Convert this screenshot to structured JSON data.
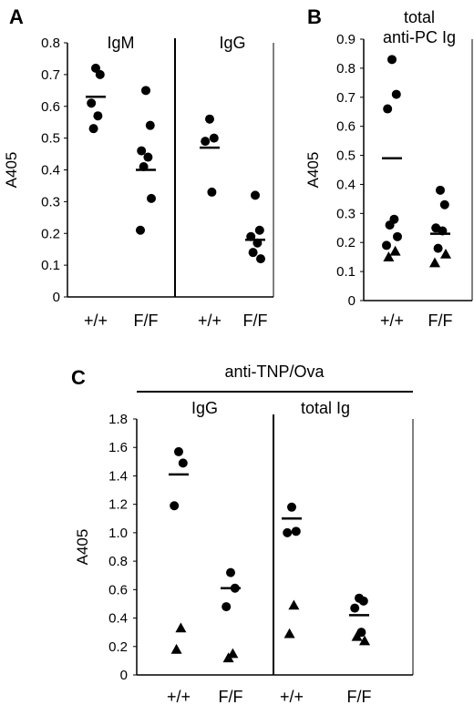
{
  "chart_data": [
    {
      "panel": "A",
      "type": "scatter",
      "ylabel": "A405",
      "ylim": [
        0,
        0.8
      ],
      "yticks": [
        "0",
        "0.1",
        "0.2",
        "0.3",
        "0.4",
        "0.5",
        "0.6",
        "0.7",
        "0.8"
      ],
      "grid": false,
      "groups": [
        {
          "label": "IgM",
          "categories": [
            {
              "label": "+/+",
              "points": [
                {
                  "y": 0.72,
                  "marker": "circle"
                },
                {
                  "y": 0.7,
                  "marker": "circle"
                },
                {
                  "y": 0.61,
                  "marker": "circle"
                },
                {
                  "y": 0.57,
                  "marker": "circle"
                },
                {
                  "y": 0.53,
                  "marker": "circle"
                }
              ],
              "mean": 0.63
            },
            {
              "label": "F/F",
              "points": [
                {
                  "y": 0.65,
                  "marker": "circle"
                },
                {
                  "y": 0.54,
                  "marker": "circle"
                },
                {
                  "y": 0.46,
                  "marker": "circle"
                },
                {
                  "y": 0.44,
                  "marker": "circle"
                },
                {
                  "y": 0.41,
                  "marker": "circle"
                },
                {
                  "y": 0.31,
                  "marker": "circle"
                },
                {
                  "y": 0.21,
                  "marker": "circle"
                }
              ],
              "mean": 0.4
            }
          ]
        },
        {
          "label": "IgG",
          "categories": [
            {
              "label": "+/+",
              "points": [
                {
                  "y": 0.56,
                  "marker": "circle"
                },
                {
                  "y": 0.5,
                  "marker": "circle"
                },
                {
                  "y": 0.49,
                  "marker": "circle"
                },
                {
                  "y": 0.33,
                  "marker": "circle"
                }
              ],
              "mean": 0.47
            },
            {
              "label": "F/F",
              "points": [
                {
                  "y": 0.32,
                  "marker": "circle"
                },
                {
                  "y": 0.21,
                  "marker": "circle"
                },
                {
                  "y": 0.19,
                  "marker": "circle"
                },
                {
                  "y": 0.17,
                  "marker": "circle"
                },
                {
                  "y": 0.14,
                  "marker": "circle"
                },
                {
                  "y": 0.12,
                  "marker": "circle"
                }
              ],
              "mean": 0.18
            }
          ]
        }
      ]
    },
    {
      "panel": "B",
      "type": "scatter",
      "title": [
        "total",
        "anti-PC Ig"
      ],
      "ylabel": "A405",
      "ylim": [
        0,
        0.9
      ],
      "yticks": [
        "0",
        "0.1",
        "0.2",
        "0.3",
        "0.4",
        "0.5",
        "0.6",
        "0.7",
        "0.8",
        "0.9"
      ],
      "grid": false,
      "groups": [
        {
          "label": "",
          "categories": [
            {
              "label": "+/+",
              "points": [
                {
                  "y": 0.83,
                  "marker": "circle"
                },
                {
                  "y": 0.71,
                  "marker": "circle"
                },
                {
                  "y": 0.66,
                  "marker": "circle"
                },
                {
                  "y": 0.28,
                  "marker": "circle"
                },
                {
                  "y": 0.26,
                  "marker": "circle"
                },
                {
                  "y": 0.22,
                  "marker": "circle"
                },
                {
                  "y": 0.19,
                  "marker": "circle"
                },
                {
                  "y": 0.17,
                  "marker": "triangle"
                },
                {
                  "y": 0.15,
                  "marker": "triangle"
                }
              ],
              "mean": 0.49
            },
            {
              "label": "F/F",
              "points": [
                {
                  "y": 0.38,
                  "marker": "circle"
                },
                {
                  "y": 0.33,
                  "marker": "circle"
                },
                {
                  "y": 0.25,
                  "marker": "circle"
                },
                {
                  "y": 0.24,
                  "marker": "circle"
                },
                {
                  "y": 0.18,
                  "marker": "circle"
                },
                {
                  "y": 0.16,
                  "marker": "triangle"
                },
                {
                  "y": 0.13,
                  "marker": "triangle"
                }
              ],
              "mean": 0.23
            }
          ]
        }
      ]
    },
    {
      "panel": "C",
      "type": "scatter",
      "title": "anti-TNP/Ova",
      "ylabel": "A405",
      "ylim": [
        0,
        1.8
      ],
      "yticks": [
        "0",
        "0.2",
        "0.4",
        "0.6",
        "0.8",
        "1.0",
        "1.2",
        "1.4",
        "1.6",
        "1.8"
      ],
      "grid": false,
      "groups": [
        {
          "label": "IgG",
          "categories": [
            {
              "label": "+/+",
              "points": [
                {
                  "y": 1.57,
                  "marker": "circle"
                },
                {
                  "y": 1.49,
                  "marker": "circle"
                },
                {
                  "y": 1.19,
                  "marker": "circle"
                },
                {
                  "y": 0.33,
                  "marker": "triangle"
                },
                {
                  "y": 0.18,
                  "marker": "triangle"
                }
              ],
              "mean": 1.41
            },
            {
              "label": "F/F",
              "points": [
                {
                  "y": 0.72,
                  "marker": "circle"
                },
                {
                  "y": 0.61,
                  "marker": "circle"
                },
                {
                  "y": 0.48,
                  "marker": "circle"
                },
                {
                  "y": 0.15,
                  "marker": "triangle"
                },
                {
                  "y": 0.12,
                  "marker": "triangle"
                }
              ],
              "mean": 0.61
            }
          ]
        },
        {
          "label": "total Ig",
          "categories": [
            {
              "label": "+/+",
              "points": [
                {
                  "y": 1.18,
                  "marker": "circle"
                },
                {
                  "y": 1.01,
                  "marker": "circle"
                },
                {
                  "y": 1.0,
                  "marker": "circle"
                },
                {
                  "y": 0.49,
                  "marker": "triangle"
                },
                {
                  "y": 0.29,
                  "marker": "triangle"
                }
              ],
              "mean": 1.1
            },
            {
              "label": "F/F",
              "points": [
                {
                  "y": 0.54,
                  "marker": "circle"
                },
                {
                  "y": 0.52,
                  "marker": "circle"
                },
                {
                  "y": 0.47,
                  "marker": "circle"
                },
                {
                  "y": 0.3,
                  "marker": "circle"
                },
                {
                  "y": 0.27,
                  "marker": "triangle"
                },
                {
                  "y": 0.24,
                  "marker": "triangle"
                }
              ],
              "mean": 0.42
            }
          ]
        }
      ]
    }
  ]
}
